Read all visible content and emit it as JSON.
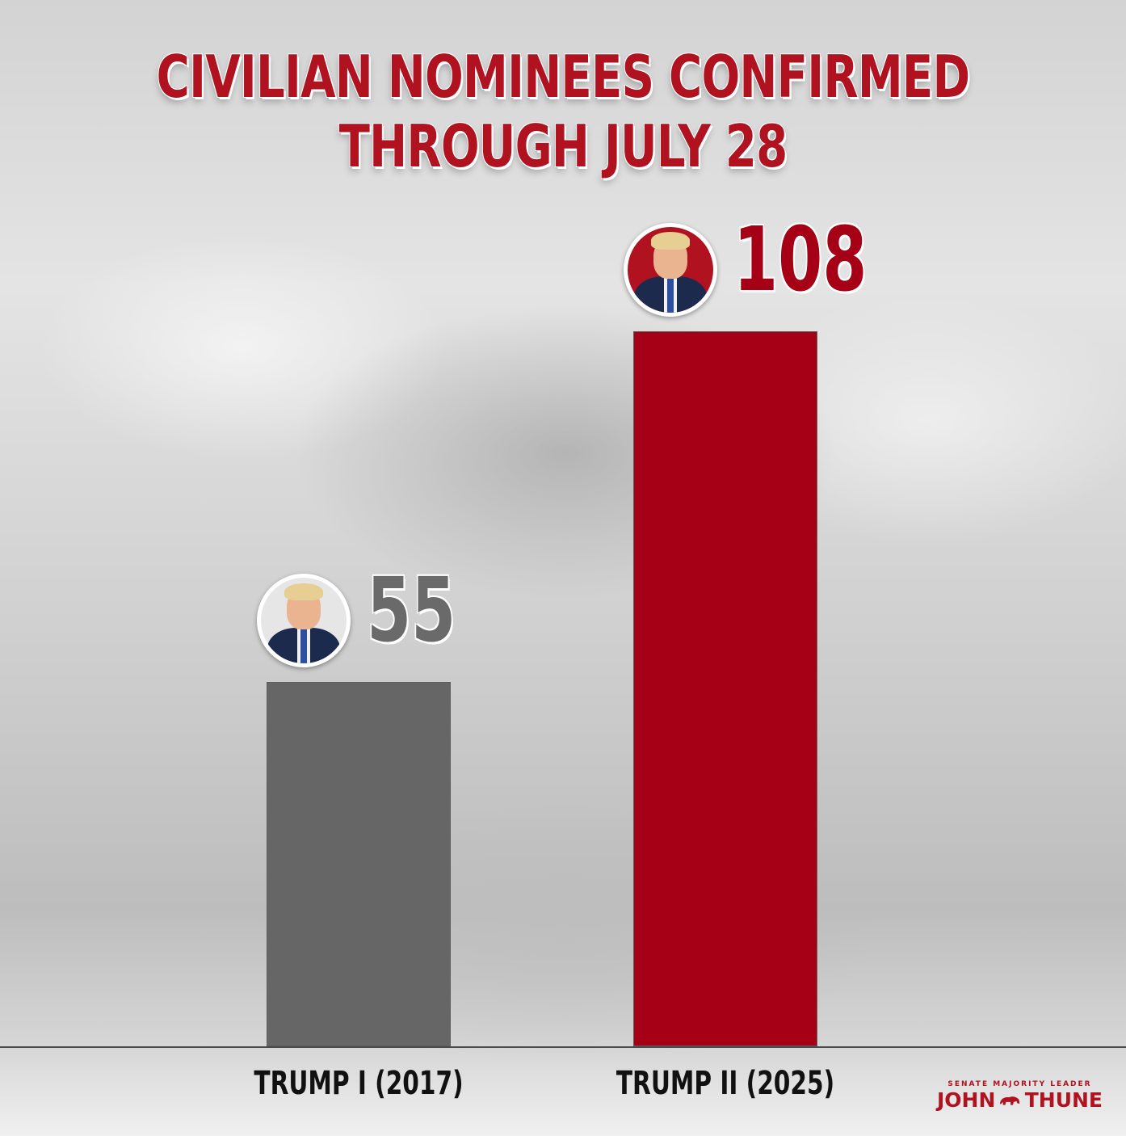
{
  "chart_data": {
    "type": "bar",
    "title": [
      "CIVILIAN NOMINEES CONFIRMED",
      "THROUGH JULY 28"
    ],
    "categories": [
      "TRUMP I (2017)",
      "TRUMP II (2025)"
    ],
    "values": [
      55,
      108
    ],
    "value_labels": [
      "55",
      "108"
    ],
    "bar_colors": [
      "#666666",
      "#a50016"
    ],
    "label_colors": [
      "#6a6a6a",
      "#a50016"
    ],
    "ylim": [
      0,
      108
    ],
    "grid": false,
    "legend": "none"
  },
  "branding": {
    "tagline": "SENATE MAJORITY LEADER",
    "name_first": "JOHN",
    "name_last": "THUNE",
    "color": "#b0121f"
  },
  "theme": {
    "title_color": "#b0121f"
  }
}
